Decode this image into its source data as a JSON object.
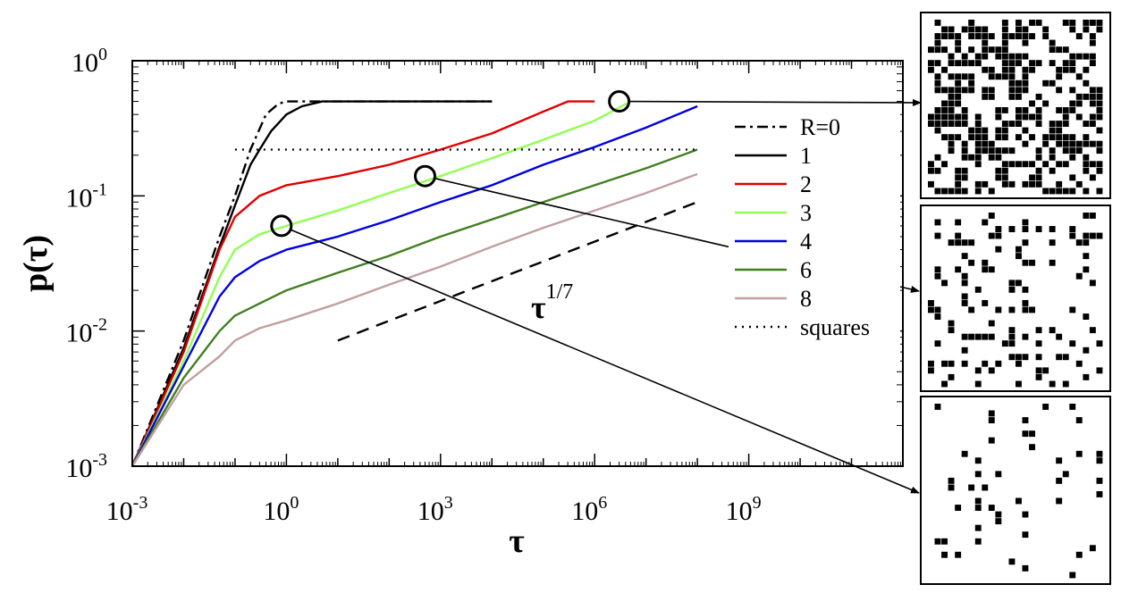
{
  "chart_data": {
    "type": "line",
    "xscale": "log",
    "yscale": "log",
    "xlim": [
      0.001,
      1000000000000.0
    ],
    "ylim": [
      0.001,
      1
    ],
    "xlabel": "τ",
    "ylabel": "p(τ)",
    "x_ticks": [
      {
        "value": 0.001,
        "base": "10",
        "exp": "-3"
      },
      {
        "value": 1,
        "base": "10",
        "exp": "0"
      },
      {
        "value": 1000,
        "base": "10",
        "exp": "3"
      },
      {
        "value": 1000000,
        "base": "10",
        "exp": "6"
      },
      {
        "value": 1000000000,
        "base": "10",
        "exp": "9"
      }
    ],
    "y_ticks": [
      {
        "value": 0.001,
        "base": "10",
        "exp": "-3"
      },
      {
        "value": 0.01,
        "base": "10",
        "exp": "-2"
      },
      {
        "value": 0.1,
        "base": "10",
        "exp": "-1"
      },
      {
        "value": 1,
        "base": "10",
        "exp": "0"
      }
    ],
    "series": [
      {
        "name": "R=0",
        "color": "#000000",
        "dash": "dashdot",
        "points": [
          [
            0.001,
            0.001
          ],
          [
            0.01,
            0.0085
          ],
          [
            0.05,
            0.05
          ],
          [
            0.1,
            0.1
          ],
          [
            0.2,
            0.22
          ],
          [
            0.4,
            0.4
          ],
          [
            0.7,
            0.48
          ],
          [
            1,
            0.5
          ],
          [
            10000,
            0.5
          ]
        ]
      },
      {
        "name": "1",
        "color": "#000000",
        "dash": "solid",
        "points": [
          [
            0.001,
            0.001
          ],
          [
            0.01,
            0.0075
          ],
          [
            0.05,
            0.042
          ],
          [
            0.1,
            0.085
          ],
          [
            0.2,
            0.17
          ],
          [
            0.3,
            0.22
          ],
          [
            0.5,
            0.3
          ],
          [
            1,
            0.4
          ],
          [
            2,
            0.46
          ],
          [
            5,
            0.5
          ],
          [
            10000,
            0.5
          ]
        ]
      },
      {
        "name": "2",
        "color": "#e00000",
        "dash": "solid",
        "points": [
          [
            0.001,
            0.001
          ],
          [
            0.01,
            0.007
          ],
          [
            0.05,
            0.04
          ],
          [
            0.1,
            0.07
          ],
          [
            0.3,
            0.1
          ],
          [
            1,
            0.12
          ],
          [
            10,
            0.14
          ],
          [
            100,
            0.17
          ],
          [
            1000,
            0.22
          ],
          [
            10000,
            0.29
          ],
          [
            100000,
            0.42
          ],
          [
            300000,
            0.5
          ],
          [
            1000000,
            0.5
          ]
        ]
      },
      {
        "name": "3",
        "color": "#90ff50",
        "dash": "solid",
        "points": [
          [
            0.001,
            0.001
          ],
          [
            0.01,
            0.006
          ],
          [
            0.05,
            0.025
          ],
          [
            0.1,
            0.04
          ],
          [
            0.3,
            0.052
          ],
          [
            1,
            0.06
          ],
          [
            10,
            0.078
          ],
          [
            100,
            0.105
          ],
          [
            1000,
            0.14
          ],
          [
            10000,
            0.19
          ],
          [
            100000,
            0.26
          ],
          [
            1000000,
            0.36
          ],
          [
            3000000,
            0.45
          ],
          [
            5000000,
            0.5
          ]
        ]
      },
      {
        "name": "4",
        "color": "#0000e0",
        "dash": "solid",
        "points": [
          [
            0.001,
            0.001
          ],
          [
            0.01,
            0.0055
          ],
          [
            0.05,
            0.018
          ],
          [
            0.1,
            0.025
          ],
          [
            0.3,
            0.033
          ],
          [
            1,
            0.04
          ],
          [
            10,
            0.05
          ],
          [
            100,
            0.066
          ],
          [
            1000,
            0.09
          ],
          [
            10000,
            0.12
          ],
          [
            100000,
            0.17
          ],
          [
            1000000,
            0.23
          ],
          [
            10000000,
            0.32
          ],
          [
            100000000,
            0.46
          ]
        ]
      },
      {
        "name": "6",
        "color": "#408020",
        "dash": "solid",
        "points": [
          [
            0.001,
            0.001
          ],
          [
            0.01,
            0.0045
          ],
          [
            0.05,
            0.01
          ],
          [
            0.1,
            0.013
          ],
          [
            0.3,
            0.016
          ],
          [
            1,
            0.02
          ],
          [
            10,
            0.027
          ],
          [
            100,
            0.036
          ],
          [
            1000,
            0.05
          ],
          [
            10000,
            0.067
          ],
          [
            100000,
            0.09
          ],
          [
            1000000,
            0.12
          ],
          [
            10000000,
            0.16
          ],
          [
            100000000,
            0.22
          ]
        ]
      },
      {
        "name": "8",
        "color": "#c0a0a0",
        "dash": "solid",
        "points": [
          [
            0.001,
            0.001
          ],
          [
            0.01,
            0.004
          ],
          [
            0.05,
            0.0065
          ],
          [
            0.1,
            0.0085
          ],
          [
            0.3,
            0.0105
          ],
          [
            1,
            0.012
          ],
          [
            10,
            0.016
          ],
          [
            100,
            0.022
          ],
          [
            1000,
            0.03
          ],
          [
            10000,
            0.042
          ],
          [
            100000,
            0.058
          ],
          [
            1000000,
            0.078
          ],
          [
            10000000,
            0.105
          ],
          [
            100000000,
            0.145
          ]
        ]
      },
      {
        "name": "squares",
        "color": "#000000",
        "dash": "dotted",
        "points": [
          [
            0.1,
            0.22
          ],
          [
            100000000,
            0.22
          ]
        ]
      }
    ],
    "guide_line": {
      "label_base": "τ",
      "label_exp": "1/7",
      "points": [
        [
          10,
          0.0085
        ],
        [
          100000000,
          0.09
        ]
      ]
    },
    "markers": [
      {
        "x": 0.8,
        "y": 0.06
      },
      {
        "x": 500,
        "y": 0.14
      },
      {
        "x": 3000000,
        "y": 0.5
      }
    ],
    "legend_position": "right",
    "grid": false
  },
  "snapshots": [
    {
      "density": "high"
    },
    {
      "density": "medium"
    },
    {
      "density": "low"
    }
  ]
}
